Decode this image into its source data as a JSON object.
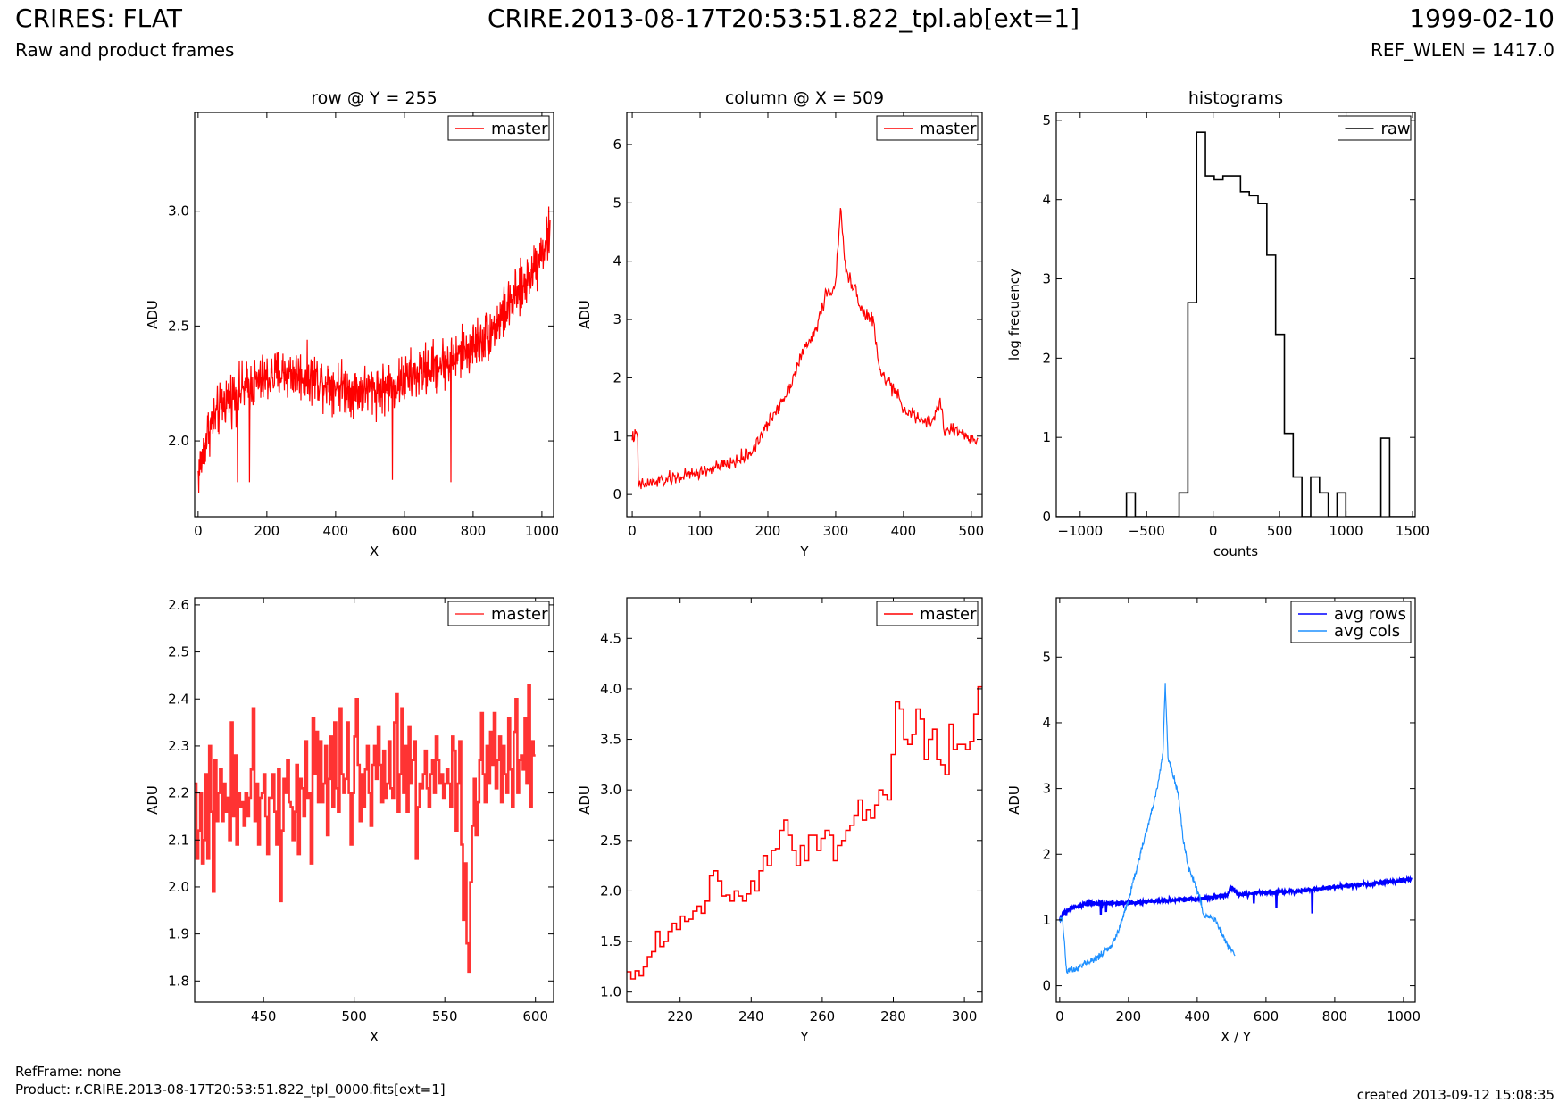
{
  "header": {
    "title": "CRIRES: FLAT",
    "subtitle": "Raw and product frames",
    "filename": "CRIRE.2013-08-17T20:53:51.822_tpl.ab[ext=1]",
    "date": "1999-02-10",
    "ref_wlen": "REF_WLEN = 1417.0"
  },
  "footer": {
    "ref_frame": "RefFrame: none",
    "product": "Product: r.CRIRE.2013-08-17T20:53:51.822_tpl_0000.fits[ext=1]",
    "created": "created 2013-09-12 15:08:35"
  },
  "colors": {
    "master": "#ff0000",
    "master_zoom": "#ff3333",
    "raw": "#000000",
    "avg_rows": "#0000ff",
    "avg_cols": "#1e90ff"
  },
  "chart_data": [
    {
      "type": "line",
      "title": "row @ Y = 255",
      "xlabel": "X",
      "ylabel": "ADU",
      "xlim": [
        -10,
        1034
      ],
      "ylim": [
        1.67,
        3.43
      ],
      "xticks": [
        0,
        200,
        400,
        600,
        800,
        1000
      ],
      "yticks": [
        2.0,
        2.5,
        3.0
      ],
      "ytick_decimals": 1,
      "legend": "top-right",
      "series": [
        {
          "name": "master",
          "color": "#ff0000",
          "style": "noisy",
          "points": [
            [
              0,
              1.85
            ],
            [
              30,
              2.05
            ],
            [
              80,
              2.18
            ],
            [
              150,
              2.24
            ],
            [
              250,
              2.3
            ],
            [
              350,
              2.27
            ],
            [
              450,
              2.22
            ],
            [
              550,
              2.23
            ],
            [
              650,
              2.3
            ],
            [
              750,
              2.36
            ],
            [
              850,
              2.47
            ],
            [
              950,
              2.68
            ],
            [
              1024,
              2.9
            ]
          ],
          "noise": 0.11,
          "dips": [
            [
              115,
              1.82
            ],
            [
              150,
              1.82
            ],
            [
              565,
              1.83
            ],
            [
              735,
              1.82
            ]
          ]
        }
      ]
    },
    {
      "type": "line",
      "title": "column @ X = 509",
      "xlabel": "Y",
      "ylabel": "ADU",
      "xlim": [
        -8,
        516
      ],
      "ylim": [
        -0.38,
        6.55
      ],
      "xticks": [
        0,
        100,
        200,
        300,
        400,
        500
      ],
      "yticks": [
        0,
        1,
        2,
        3,
        4,
        5,
        6
      ],
      "ytick_decimals": 0,
      "legend": "top-right",
      "series": [
        {
          "name": "master",
          "color": "#ff0000",
          "style": "noisy",
          "points": [
            [
              0,
              1.0
            ],
            [
              8,
              1.0
            ],
            [
              9,
              0.15
            ],
            [
              50,
              0.25
            ],
            [
              100,
              0.38
            ],
            [
              150,
              0.55
            ],
            [
              175,
              0.72
            ],
            [
              200,
              1.2
            ],
            [
              230,
              1.8
            ],
            [
              250,
              2.4
            ],
            [
              270,
              2.8
            ],
            [
              285,
              3.4
            ],
            [
              300,
              3.6
            ],
            [
              307,
              4.9
            ],
            [
              315,
              3.8
            ],
            [
              330,
              3.5
            ],
            [
              340,
              3.1
            ],
            [
              355,
              3.0
            ],
            [
              365,
              2.1
            ],
            [
              380,
              1.9
            ],
            [
              400,
              1.5
            ],
            [
              420,
              1.3
            ],
            [
              440,
              1.2
            ],
            [
              455,
              1.6
            ],
            [
              460,
              1.1
            ],
            [
              480,
              1.1
            ],
            [
              500,
              0.95
            ],
            [
              510,
              0.9
            ]
          ],
          "noise": 0.12,
          "dips": []
        }
      ]
    },
    {
      "type": "histogram",
      "title": "histograms",
      "xlabel": "counts",
      "ylabel": "log frequency",
      "xlim": [
        -1180,
        1520
      ],
      "ylim": [
        0,
        5.1
      ],
      "xticks": [
        -1000,
        -500,
        0,
        500,
        1000,
        1500
      ],
      "yticks": [
        0,
        1,
        2,
        3,
        4,
        5
      ],
      "ytick_decimals": 0,
      "legend": "top-right",
      "series": [
        {
          "name": "raw",
          "color": "#000000",
          "bin_start": -1180,
          "bin_width": 66,
          "values": [
            0,
            0,
            0,
            0,
            0,
            0,
            0,
            0,
            0.3,
            0,
            0,
            0,
            0,
            0,
            0.3,
            2.7,
            4.85,
            4.3,
            4.25,
            4.3,
            4.3,
            4.1,
            4.05,
            3.95,
            3.3,
            2.3,
            1.05,
            0.5,
            0,
            0.5,
            0.3,
            0,
            0.3,
            0,
            0,
            0,
            0,
            0.99,
            0,
            0,
            0
          ]
        }
      ]
    },
    {
      "type": "line",
      "title": "",
      "xlabel": "X",
      "ylabel": "ADU",
      "xlim": [
        412,
        610
      ],
      "ylim": [
        1.755,
        2.615
      ],
      "xticks": [
        450,
        500,
        550,
        600
      ],
      "yticks": [
        1.8,
        1.9,
        2.0,
        2.1,
        2.2,
        2.3,
        2.4,
        2.5,
        2.6
      ],
      "ytick_decimals": 1,
      "legend": "top-right",
      "series": [
        {
          "name": "master",
          "color": "#ff3333",
          "style": "steps",
          "values": [
            2.22,
            2.06,
            2.12,
            2.2,
            2.05,
            2.1,
            2.24,
            2.06,
            2.3,
            2.16,
            1.99,
            2.27,
            2.14,
            2.2,
            2.25,
            2.14,
            2.22,
            2.16,
            2.19,
            2.1,
            2.35,
            2.15,
            2.28,
            2.09,
            2.2,
            2.17,
            2.18,
            2.13,
            2.2,
            2.15,
            2.19,
            2.25,
            2.38,
            2.14,
            2.22,
            2.09,
            2.19,
            2.2,
            2.24,
            2.15,
            2.07,
            2.19,
            2.19,
            2.24,
            2.16,
            2.09,
            2.25,
            1.97,
            2.12,
            2.23,
            2.2,
            2.27,
            2.18,
            2.17,
            2.1,
            2.16,
            2.26,
            2.07,
            2.23,
            2.21,
            2.15,
            2.31,
            2.19,
            2.2,
            2.05,
            2.36,
            2.24,
            2.33,
            2.18,
            2.31,
            2.18,
            2.22,
            2.3,
            2.11,
            2.23,
            2.32,
            2.17,
            2.35,
            2.21,
            2.16,
            2.38,
            2.24,
            2.2,
            2.23,
            2.35,
            2.2,
            2.09,
            2.2,
            2.32,
            2.4,
            2.26,
            2.14,
            2.24,
            2.17,
            2.25,
            2.3,
            2.2,
            2.13,
            2.26,
            2.3,
            2.23,
            2.34,
            2.26,
            2.18,
            2.29,
            2.19,
            2.22,
            2.31,
            2.21,
            2.19,
            2.35,
            2.41,
            2.16,
            2.24,
            2.38,
            2.2,
            2.3,
            2.16,
            2.34,
            2.22,
            2.27,
            2.31,
            2.06,
            2.17,
            2.22,
            2.21,
            2.24,
            2.29,
            2.21,
            2.17,
            2.24,
            2.27,
            2.2,
            2.32,
            2.27,
            2.22,
            2.24,
            2.19,
            2.22,
            2.25,
            2.22,
            2.17,
            2.32,
            2.29,
            2.12,
            2.22,
            2.31,
            2.09,
            1.93,
            2.05,
            1.88,
            1.82,
            2.01,
            2.13,
            2.23,
            2.11,
            2.18,
            2.27,
            2.37,
            2.24,
            2.18,
            2.3,
            2.22,
            2.33,
            2.26,
            2.37,
            2.21,
            2.27,
            2.32,
            2.18,
            2.3,
            2.24,
            2.2,
            2.36,
            2.25,
            2.17,
            2.33,
            2.4,
            2.2,
            2.27,
            2.28,
            2.25,
            2.36,
            2.22,
            2.43,
            2.17,
            2.31,
            2.28
          ],
          "x_start": 412,
          "x_step": 1
        }
      ]
    },
    {
      "type": "line",
      "title": "",
      "xlabel": "Y",
      "ylabel": "ADU",
      "xlim": [
        205,
        305
      ],
      "ylim": [
        0.9,
        4.9
      ],
      "xticks": [
        220,
        240,
        260,
        280,
        300
      ],
      "yticks": [
        1.0,
        1.5,
        2.0,
        2.5,
        3.0,
        3.5,
        4.0,
        4.5
      ],
      "ytick_decimals": 1,
      "legend": "top-right",
      "series": [
        {
          "name": "master",
          "color": "#ff0000",
          "style": "steps",
          "values": [
            1.2,
            1.13,
            1.21,
            1.16,
            1.25,
            1.35,
            1.4,
            1.6,
            1.45,
            1.5,
            1.6,
            1.68,
            1.62,
            1.75,
            1.7,
            1.72,
            1.8,
            1.85,
            1.78,
            1.9,
            2.15,
            2.2,
            2.1,
            1.95,
            1.96,
            1.9,
            2.0,
            1.95,
            1.9,
            1.97,
            2.1,
            2.0,
            2.2,
            2.35,
            2.25,
            2.4,
            2.42,
            2.6,
            2.7,
            2.55,
            2.4,
            2.25,
            2.45,
            2.3,
            2.55,
            2.55,
            2.4,
            2.52,
            2.6,
            2.55,
            2.3,
            2.45,
            2.5,
            2.6,
            2.65,
            2.75,
            2.9,
            2.7,
            2.8,
            2.72,
            2.85,
            3.0,
            2.95,
            2.9,
            3.35,
            3.87,
            3.8,
            3.5,
            3.45,
            3.55,
            3.8,
            3.7,
            3.3,
            3.5,
            3.6,
            3.3,
            3.25,
            3.15,
            3.65,
            3.4,
            3.45,
            3.45,
            3.4,
            3.48,
            3.75,
            4.02
          ]
        }
      ]
    },
    {
      "type": "line",
      "title": "",
      "xlabel": "X / Y",
      "ylabel": "ADU",
      "xlim": [
        -10,
        1034
      ],
      "ylim": [
        -0.25,
        5.9
      ],
      "xticks": [
        0,
        200,
        400,
        600,
        800,
        1000
      ],
      "yticks": [
        0,
        1,
        2,
        3,
        4,
        5
      ],
      "ytick_decimals": 0,
      "legend": "top-right",
      "series": [
        {
          "name": "avg rows",
          "color": "#0000ff",
          "style": "thicknoisy",
          "points": [
            [
              0,
              1.0
            ],
            [
              10,
              1.1
            ],
            [
              40,
              1.2
            ],
            [
              80,
              1.25
            ],
            [
              200,
              1.26
            ],
            [
              400,
              1.32
            ],
            [
              490,
              1.38
            ],
            [
              500,
              1.5
            ],
            [
              520,
              1.38
            ],
            [
              600,
              1.42
            ],
            [
              700,
              1.44
            ],
            [
              800,
              1.5
            ],
            [
              900,
              1.55
            ],
            [
              1000,
              1.6
            ],
            [
              1023,
              1.62
            ]
          ],
          "noise": 0.03,
          "dips": [
            [
              120,
              1.08
            ],
            [
              135,
              1.12
            ],
            [
              565,
              1.25
            ],
            [
              630,
              1.18
            ],
            [
              735,
              1.1
            ],
            [
              1024,
              2.15
            ]
          ]
        },
        {
          "name": "avg cols",
          "color": "#1e90ff",
          "style": "noisy",
          "points": [
            [
              0,
              1.0
            ],
            [
              8,
              1.0
            ],
            [
              20,
              0.22
            ],
            [
              50,
              0.28
            ],
            [
              100,
              0.4
            ],
            [
              150,
              0.6
            ],
            [
              175,
              0.9
            ],
            [
              200,
              1.3
            ],
            [
              230,
              1.9
            ],
            [
              255,
              2.4
            ],
            [
              275,
              2.8
            ],
            [
              290,
              3.2
            ],
            [
              300,
              3.5
            ],
            [
              307,
              4.6
            ],
            [
              315,
              3.5
            ],
            [
              330,
              3.2
            ],
            [
              345,
              2.9
            ],
            [
              360,
              2.2
            ],
            [
              375,
              1.8
            ],
            [
              390,
              1.6
            ],
            [
              410,
              1.3
            ],
            [
              420,
              1.05
            ],
            [
              440,
              1.05
            ],
            [
              455,
              1.0
            ],
            [
              470,
              0.8
            ],
            [
              490,
              0.6
            ],
            [
              510,
              0.48
            ]
          ],
          "noise": 0.05,
          "dips": []
        }
      ]
    }
  ]
}
